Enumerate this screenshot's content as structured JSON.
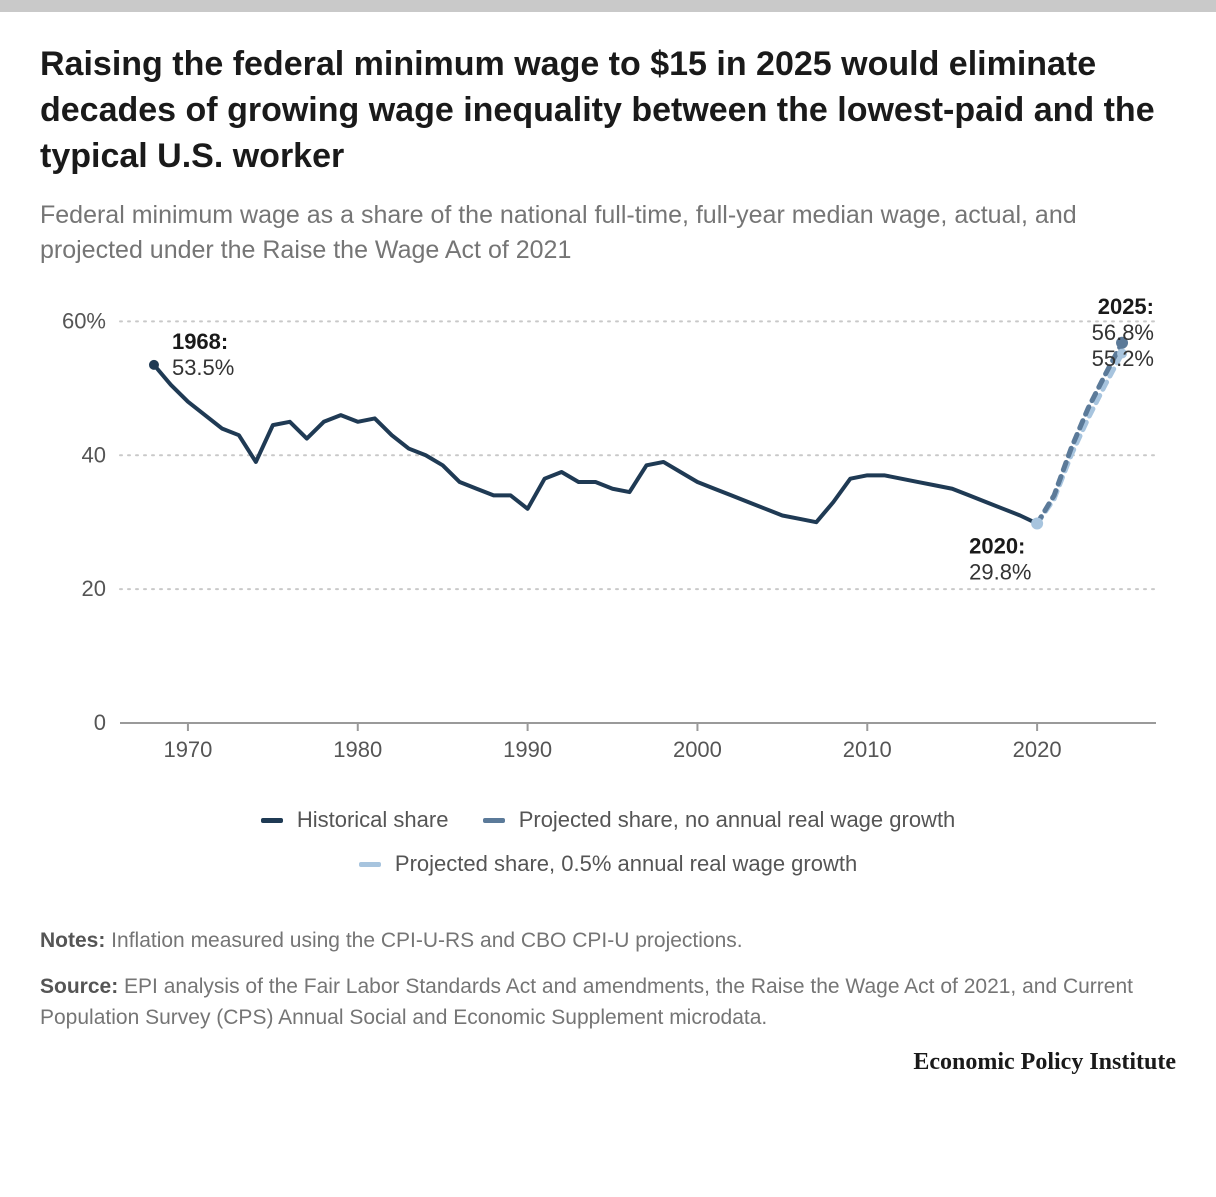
{
  "title": "Raising the federal minimum wage to $15 in 2025 would eliminate decades of growing wage inequality between the lowest-paid and the typical U.S. worker",
  "subtitle": "Federal minimum wage as a share of the national full-time, full-year median wage, actual, and projected under the Raise the Wage Act of 2021",
  "notes_label": "Notes:",
  "notes_text": " Inflation measured using the CPI-U-RS and CBO CPI-U projections.",
  "source_label": "Source:",
  "source_text": " EPI analysis of the Fair Labor Standards Act and amendments, the Raise the Wage Act of 2021, and Current Population Survey (CPS) Annual Social and Economic Supplement microdata.",
  "footer": "Economic Policy Institute",
  "legend": {
    "s1": "Historical share",
    "s2": "Projected share, no annual real wage growth",
    "s3": "Projected share, 0.5% annual real wage growth"
  },
  "chart": {
    "type": "line",
    "xlim": [
      1966,
      2027
    ],
    "ylim": [
      0,
      62
    ],
    "yticks": [
      0,
      20,
      40,
      60
    ],
    "ytick_labels": [
      "0",
      "20",
      "40",
      "60%"
    ],
    "xticks": [
      1970,
      1980,
      1990,
      2000,
      2010,
      2020
    ],
    "xtick_labels": [
      "1970",
      "1980",
      "1990",
      "2000",
      "2010",
      "2020"
    ],
    "grid_color": "#c9c9c9",
    "axis_color": "#9a9a9a",
    "background_color": "#ffffff",
    "colors": {
      "historical": "#1f3a54",
      "proj_none": "#5b7a99",
      "proj_half": "#a7c4de"
    },
    "line_width": 4,
    "dash": "8,7",
    "series": {
      "historical": [
        [
          1968,
          53.5
        ],
        [
          1969,
          50.5
        ],
        [
          1970,
          48.0
        ],
        [
          1971,
          46.0
        ],
        [
          1972,
          44.0
        ],
        [
          1973,
          43.0
        ],
        [
          1974,
          39.0
        ],
        [
          1975,
          44.5
        ],
        [
          1976,
          45.0
        ],
        [
          1977,
          42.5
        ],
        [
          1978,
          45.0
        ],
        [
          1979,
          46.0
        ],
        [
          1980,
          45.0
        ],
        [
          1981,
          45.5
        ],
        [
          1982,
          43.0
        ],
        [
          1983,
          41.0
        ],
        [
          1984,
          40.0
        ],
        [
          1985,
          38.5
        ],
        [
          1986,
          36.0
        ],
        [
          1987,
          35.0
        ],
        [
          1988,
          34.0
        ],
        [
          1989,
          34.0
        ],
        [
          1990,
          32.0
        ],
        [
          1991,
          36.5
        ],
        [
          1992,
          37.5
        ],
        [
          1993,
          36.0
        ],
        [
          1994,
          36.0
        ],
        [
          1995,
          35.0
        ],
        [
          1996,
          34.5
        ],
        [
          1997,
          38.5
        ],
        [
          1998,
          39.0
        ],
        [
          1999,
          37.5
        ],
        [
          2000,
          36.0
        ],
        [
          2001,
          35.0
        ],
        [
          2002,
          34.0
        ],
        [
          2003,
          33.0
        ],
        [
          2004,
          32.0
        ],
        [
          2005,
          31.0
        ],
        [
          2006,
          30.5
        ],
        [
          2007,
          30.0
        ],
        [
          2008,
          33.0
        ],
        [
          2009,
          36.5
        ],
        [
          2010,
          37.0
        ],
        [
          2011,
          37.0
        ],
        [
          2012,
          36.5
        ],
        [
          2013,
          36.0
        ],
        [
          2014,
          35.5
        ],
        [
          2015,
          35.0
        ],
        [
          2016,
          34.0
        ],
        [
          2017,
          33.0
        ],
        [
          2018,
          32.0
        ],
        [
          2019,
          31.0
        ],
        [
          2020,
          29.8
        ]
      ],
      "proj_none": [
        [
          2020,
          29.8
        ],
        [
          2021,
          34.0
        ],
        [
          2022,
          41.0
        ],
        [
          2023,
          47.0
        ],
        [
          2024,
          52.0
        ],
        [
          2025,
          56.8
        ]
      ],
      "proj_half": [
        [
          2020,
          29.8
        ],
        [
          2021,
          33.5
        ],
        [
          2022,
          40.0
        ],
        [
          2023,
          45.5
        ],
        [
          2024,
          50.5
        ],
        [
          2025,
          55.2
        ]
      ]
    },
    "markers": {
      "start": {
        "year": 1968,
        "value": 53.5,
        "color": "#1f3a54",
        "r": 5
      },
      "low": {
        "year": 2020,
        "value": 29.8,
        "color": "#a7c4de",
        "r": 6
      },
      "end_a": {
        "year": 2025,
        "value": 56.8,
        "color": "#5b7a99",
        "r": 6
      },
      "end_b": {
        "year": 2025,
        "value": 55.2,
        "color": "#a7c4de",
        "r": 5
      }
    },
    "annotations": {
      "a1968_l1": "1968:",
      "a1968_l2": "53.5%",
      "a2020_l1": "2020:",
      "a2020_l2": "29.8%",
      "a2025_l1": "2025:",
      "a2025_l2": "56.8%",
      "a2025_l3": "55.2%"
    }
  }
}
